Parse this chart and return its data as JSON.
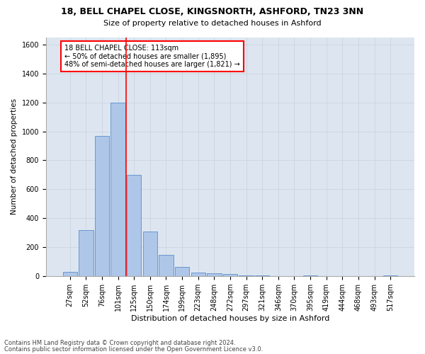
{
  "title1": "18, BELL CHAPEL CLOSE, KINGSNORTH, ASHFORD, TN23 3NN",
  "title2": "Size of property relative to detached houses in Ashford",
  "xlabel": "Distribution of detached houses by size in Ashford",
  "ylabel": "Number of detached properties",
  "footnote1": "Contains HM Land Registry data © Crown copyright and database right 2024.",
  "footnote2": "Contains public sector information licensed under the Open Government Licence v3.0.",
  "categories": [
    "27sqm",
    "52sqm",
    "76sqm",
    "101sqm",
    "125sqm",
    "150sqm",
    "174sqm",
    "199sqm",
    "223sqm",
    "248sqm",
    "272sqm",
    "297sqm",
    "321sqm",
    "346sqm",
    "370sqm",
    "395sqm",
    "419sqm",
    "444sqm",
    "468sqm",
    "493sqm",
    "517sqm"
  ],
  "values": [
    30,
    320,
    970,
    1200,
    700,
    310,
    150,
    65,
    25,
    20,
    15,
    5,
    5,
    3,
    0,
    5,
    0,
    0,
    0,
    0,
    5
  ],
  "bar_color": "#aec6e8",
  "bar_edge_color": "#5b8fcc",
  "bar_edge_width": 0.6,
  "annotation_title": "18 BELL CHAPEL CLOSE: 113sqm",
  "annotation_line1": "← 50% of detached houses are smaller (1,895)",
  "annotation_line2": "48% of semi-detached houses are larger (1,821) →",
  "annotation_box_color": "red",
  "annotation_box_facecolor": "white",
  "red_line_color": "red",
  "ylim": [
    0,
    1650
  ],
  "yticks": [
    0,
    200,
    400,
    600,
    800,
    1000,
    1200,
    1400,
    1600
  ],
  "grid_color": "#c8d0dc",
  "bg_color": "#dde6f0",
  "title1_fontsize": 9,
  "title2_fontsize": 8,
  "xlabel_fontsize": 8,
  "ylabel_fontsize": 7.5,
  "tick_fontsize": 7,
  "annotation_fontsize": 7,
  "footnote_fontsize": 6
}
